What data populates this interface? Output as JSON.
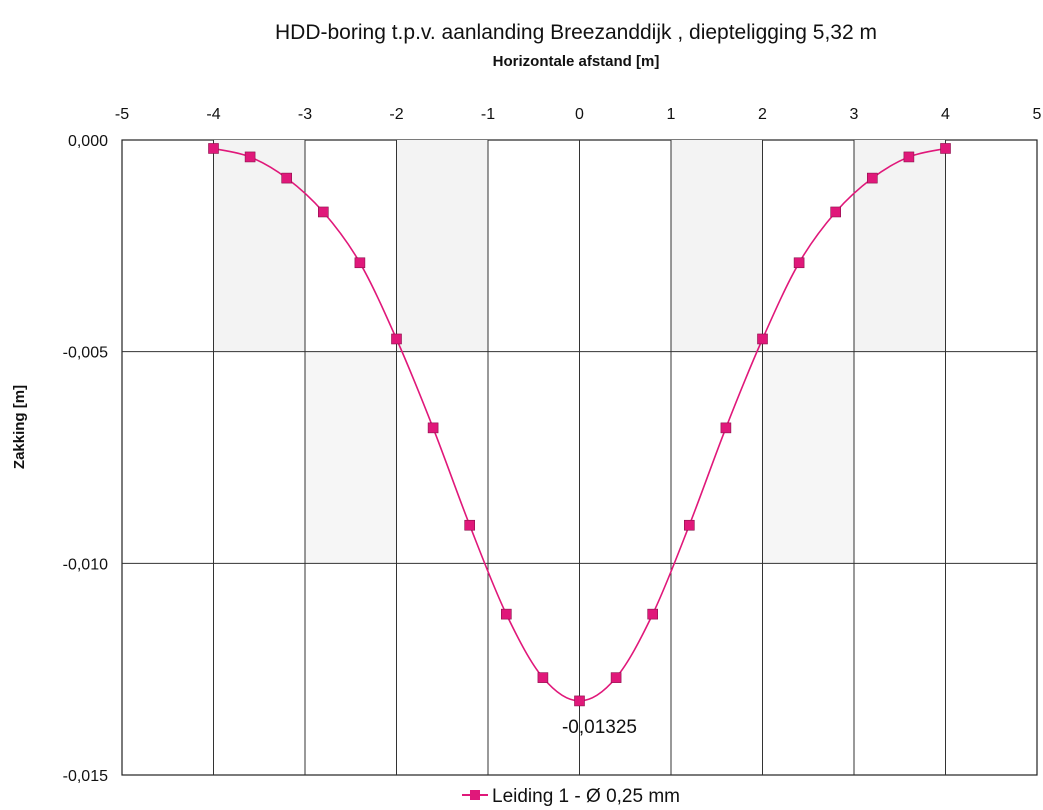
{
  "chart_data": {
    "type": "line",
    "title": "HDD-boring t.p.v. aanlanding Breezanddijk , diepteligging 5,32 m",
    "xlabel": "Horizontale afstand [m]",
    "ylabel": "Zakking [m]",
    "xlim": [
      -5,
      5
    ],
    "ylim": [
      -0.015,
      0.0
    ],
    "x_ticks": [
      "-5",
      "-4",
      "-3",
      "-2",
      "-1",
      "0",
      "1",
      "2",
      "3",
      "4",
      "5"
    ],
    "y_ticks": [
      "0,000",
      "-0,005",
      "-0,010",
      "-0,015"
    ],
    "x_axis_position": "top",
    "grid": true,
    "legend": "bottom",
    "series": [
      {
        "name": "Leiding 1 -  Ø 0,25 mm",
        "color": "#e0187a",
        "marker": "square",
        "x": [
          -4.0,
          -3.6,
          -3.2,
          -2.8,
          -2.4,
          -2.0,
          -1.6,
          -1.2,
          -0.8,
          -0.4,
          0.0,
          0.4,
          0.8,
          1.2,
          1.6,
          2.0,
          2.4,
          2.8,
          3.2,
          3.6,
          4.0
        ],
        "y": [
          -0.0002,
          -0.0004,
          -0.0009,
          -0.0017,
          -0.0029,
          -0.0047,
          -0.0068,
          -0.0091,
          -0.0112,
          -0.0127,
          -0.01325,
          -0.0127,
          -0.0112,
          -0.0091,
          -0.0068,
          -0.0047,
          -0.0029,
          -0.0017,
          -0.0009,
          -0.0004,
          -0.0002
        ]
      }
    ],
    "annotations": [
      {
        "text": "-0,01325",
        "x": 0.0,
        "y": -0.01325
      }
    ]
  }
}
